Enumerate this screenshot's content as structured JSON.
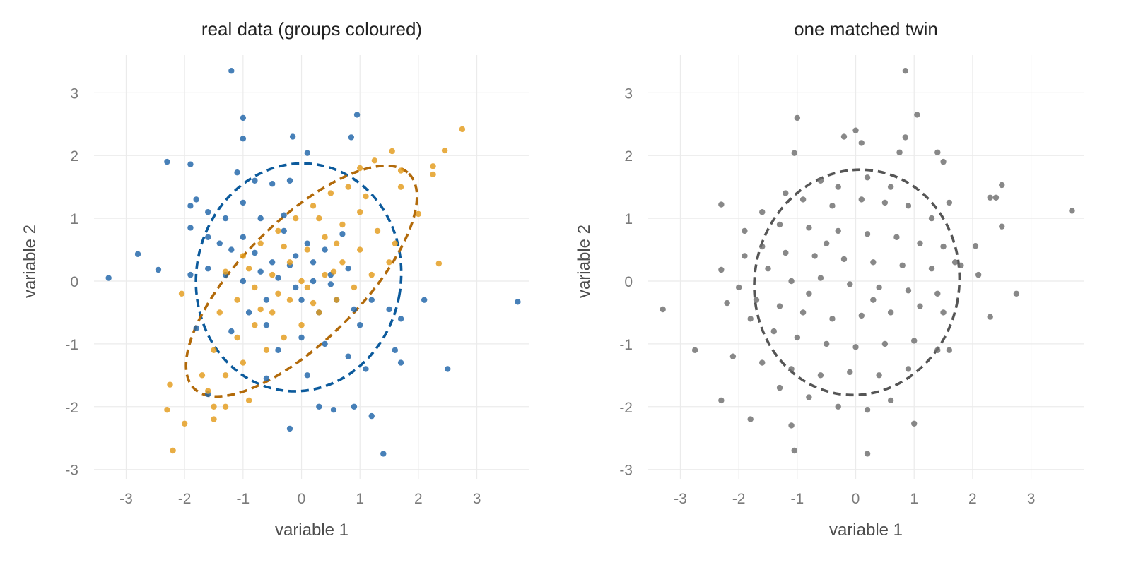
{
  "chart_data": [
    {
      "type": "scatter",
      "title": "real data (groups coloured)",
      "xlabel": "variable 1",
      "ylabel": "variable 2",
      "xlim": [
        -3.55,
        3.9
      ],
      "ylim": [
        -3.15,
        3.6
      ],
      "xticks": [
        -3,
        -2,
        -1,
        0,
        1,
        2,
        3
      ],
      "yticks": [
        -3,
        -2,
        -1,
        0,
        1,
        2,
        3
      ],
      "grid": true,
      "legend": "none",
      "series": [
        {
          "color": "#1f64a8",
          "points": [
            [
              -1.2,
              3.35
            ],
            [
              -1.0,
              2.6
            ],
            [
              -1.0,
              2.27
            ],
            [
              0.95,
              2.65
            ],
            [
              -0.15,
              2.3
            ],
            [
              0.85,
              2.29
            ],
            [
              0.1,
              2.04
            ],
            [
              -2.3,
              1.9
            ],
            [
              -1.9,
              1.86
            ],
            [
              -1.1,
              1.73
            ],
            [
              -0.8,
              1.6
            ],
            [
              -0.5,
              1.55
            ],
            [
              -0.2,
              1.6
            ],
            [
              -1.8,
              1.3
            ],
            [
              -1.9,
              1.2
            ],
            [
              -1.6,
              1.1
            ],
            [
              -1.3,
              1.0
            ],
            [
              -1.0,
              1.25
            ],
            [
              -0.7,
              1.0
            ],
            [
              -0.3,
              1.05
            ],
            [
              -1.9,
              0.85
            ],
            [
              -1.6,
              0.7
            ],
            [
              -1.4,
              0.6
            ],
            [
              -1.2,
              0.5
            ],
            [
              -1.0,
              0.7
            ],
            [
              -0.8,
              0.45
            ],
            [
              -0.5,
              0.3
            ],
            [
              -0.2,
              0.25
            ],
            [
              0.1,
              0.6
            ],
            [
              0.4,
              0.5
            ],
            [
              -1.9,
              0.1
            ],
            [
              -1.6,
              0.2
            ],
            [
              -1.3,
              0.1
            ],
            [
              -1.0,
              0.0
            ],
            [
              -0.7,
              0.15
            ],
            [
              -0.4,
              0.05
            ],
            [
              -0.1,
              -0.1
            ],
            [
              0.2,
              0.0
            ],
            [
              0.5,
              0.1
            ],
            [
              0.8,
              0.2
            ],
            [
              -2.8,
              0.43
            ],
            [
              -2.45,
              0.18
            ],
            [
              -3.3,
              0.05
            ],
            [
              0.0,
              -0.3
            ],
            [
              0.3,
              -0.5
            ],
            [
              0.6,
              -0.3
            ],
            [
              0.9,
              -0.45
            ],
            [
              1.2,
              -0.3
            ],
            [
              1.5,
              -0.45
            ],
            [
              1.7,
              -0.6
            ],
            [
              -1.8,
              -0.75
            ],
            [
              -1.2,
              -0.8
            ],
            [
              -0.6,
              -0.7
            ],
            [
              0.0,
              -0.9
            ],
            [
              0.4,
              -1.0
            ],
            [
              0.8,
              -1.2
            ],
            [
              1.1,
              -1.4
            ],
            [
              1.6,
              -1.1
            ],
            [
              1.7,
              -1.3
            ],
            [
              2.1,
              -0.3
            ],
            [
              2.5,
              -1.4
            ],
            [
              -1.6,
              -1.8
            ],
            [
              -0.6,
              -1.55
            ],
            [
              0.1,
              -1.5
            ],
            [
              0.3,
              -2.0
            ],
            [
              0.55,
              -2.05
            ],
            [
              0.9,
              -2.0
            ],
            [
              1.2,
              -2.15
            ],
            [
              1.4,
              -2.75
            ],
            [
              -0.2,
              -2.35
            ],
            [
              3.7,
              -0.33
            ],
            [
              -0.3,
              0.8
            ],
            [
              -0.1,
              0.4
            ],
            [
              0.2,
              0.3
            ],
            [
              0.5,
              -0.05
            ],
            [
              -0.6,
              -0.3
            ],
            [
              -0.9,
              -0.5
            ],
            [
              0.7,
              0.75
            ],
            [
              1.0,
              -0.7
            ],
            [
              -0.4,
              -1.1
            ]
          ]
        },
        {
          "color": "#e39b1b",
          "points": [
            [
              2.75,
              2.42
            ],
            [
              2.45,
              2.08
            ],
            [
              2.25,
              1.83
            ],
            [
              2.25,
              1.7
            ],
            [
              1.55,
              2.07
            ],
            [
              1.25,
              1.92
            ],
            [
              1.0,
              1.8
            ],
            [
              1.7,
              1.76
            ],
            [
              1.7,
              1.5
            ],
            [
              2.0,
              1.07
            ],
            [
              0.8,
              1.5
            ],
            [
              0.5,
              1.4
            ],
            [
              0.2,
              1.2
            ],
            [
              -0.1,
              1.0
            ],
            [
              -0.4,
              0.8
            ],
            [
              -0.7,
              0.6
            ],
            [
              -1.0,
              0.4
            ],
            [
              -1.3,
              0.15
            ],
            [
              1.0,
              1.1
            ],
            [
              0.7,
              0.9
            ],
            [
              0.4,
              0.7
            ],
            [
              0.1,
              0.5
            ],
            [
              -0.2,
              0.3
            ],
            [
              -0.5,
              0.1
            ],
            [
              -0.8,
              -0.1
            ],
            [
              -1.1,
              -0.3
            ],
            [
              -1.4,
              -0.5
            ],
            [
              1.3,
              0.8
            ],
            [
              1.0,
              0.5
            ],
            [
              0.7,
              0.3
            ],
            [
              0.4,
              0.1
            ],
            [
              0.1,
              -0.1
            ],
            [
              -0.2,
              -0.3
            ],
            [
              -0.5,
              -0.5
            ],
            [
              -0.8,
              -0.7
            ],
            [
              -1.1,
              -0.9
            ],
            [
              -1.5,
              -1.1
            ],
            [
              1.5,
              0.3
            ],
            [
              1.2,
              0.1
            ],
            [
              0.9,
              -0.1
            ],
            [
              0.6,
              -0.3
            ],
            [
              0.3,
              -0.5
            ],
            [
              0.0,
              -0.7
            ],
            [
              -0.3,
              -0.9
            ],
            [
              -0.6,
              -1.1
            ],
            [
              -1.0,
              -1.3
            ],
            [
              -1.3,
              -1.5
            ],
            [
              -1.6,
              -1.75
            ],
            [
              -1.5,
              -2.0
            ],
            [
              -1.5,
              -2.2
            ],
            [
              -1.3,
              -2.0
            ],
            [
              -0.9,
              -1.9
            ],
            [
              -1.7,
              -1.5
            ],
            [
              -2.25,
              -1.65
            ],
            [
              -2.3,
              -2.05
            ],
            [
              -2.0,
              -2.27
            ],
            [
              -2.2,
              -2.7
            ],
            [
              -2.05,
              -0.2
            ],
            [
              2.35,
              0.28
            ],
            [
              1.6,
              0.6
            ],
            [
              0.3,
              1.0
            ],
            [
              -0.3,
              0.55
            ],
            [
              0.6,
              0.6
            ],
            [
              -0.9,
              0.2
            ],
            [
              1.1,
              1.35
            ],
            [
              0.0,
              0.0
            ],
            [
              -0.4,
              -0.2
            ],
            [
              0.2,
              -0.35
            ],
            [
              -0.7,
              -0.45
            ],
            [
              0.55,
              0.15
            ]
          ]
        }
      ],
      "ellipses": [
        {
          "color": "#0b5a9c",
          "center": [
            -0.05,
            0.06
          ],
          "rx": 1.75,
          "ry": 1.82,
          "angle_deg": -10
        },
        {
          "color": "#b26a0a",
          "center": [
            0.0,
            0.0
          ],
          "rx": 2.6,
          "ry": 0.95,
          "angle_deg": 45
        }
      ]
    },
    {
      "type": "scatter",
      "title": "one matched twin",
      "xlabel": "variable 1",
      "ylabel": "variable 2",
      "xlim": [
        -3.55,
        3.9
      ],
      "ylim": [
        -3.15,
        3.6
      ],
      "xticks": [
        -3,
        -2,
        -1,
        0,
        1,
        2,
        3
      ],
      "yticks": [
        -3,
        -2,
        -1,
        0,
        1,
        2,
        3
      ],
      "grid": true,
      "legend": "none",
      "series": [
        {
          "color": "#6e6e6e",
          "points": [
            [
              0.85,
              3.35
            ],
            [
              1.05,
              2.65
            ],
            [
              -1.0,
              2.6
            ],
            [
              0.85,
              2.29
            ],
            [
              -0.2,
              2.3
            ],
            [
              0.0,
              2.4
            ],
            [
              0.1,
              2.2
            ],
            [
              0.75,
              2.05
            ],
            [
              1.4,
              2.05
            ],
            [
              -1.05,
              2.04
            ],
            [
              -0.6,
              1.6
            ],
            [
              0.2,
              1.65
            ],
            [
              1.5,
              1.9
            ],
            [
              -0.3,
              1.5
            ],
            [
              0.6,
              1.5
            ],
            [
              -1.2,
              1.4
            ],
            [
              -0.9,
              1.3
            ],
            [
              -0.4,
              1.2
            ],
            [
              0.1,
              1.3
            ],
            [
              0.5,
              1.25
            ],
            [
              0.9,
              1.2
            ],
            [
              1.3,
              1.0
            ],
            [
              1.6,
              1.25
            ],
            [
              -1.6,
              1.1
            ],
            [
              -1.3,
              0.9
            ],
            [
              -0.8,
              0.85
            ],
            [
              -0.3,
              0.8
            ],
            [
              0.2,
              0.75
            ],
            [
              0.7,
              0.7
            ],
            [
              1.1,
              0.6
            ],
            [
              1.5,
              0.55
            ],
            [
              -1.9,
              0.8
            ],
            [
              -1.6,
              0.55
            ],
            [
              -1.2,
              0.45
            ],
            [
              -0.7,
              0.4
            ],
            [
              -0.2,
              0.35
            ],
            [
              0.3,
              0.3
            ],
            [
              0.8,
              0.25
            ],
            [
              1.3,
              0.2
            ],
            [
              1.7,
              0.3
            ],
            [
              -1.9,
              0.4
            ],
            [
              -1.5,
              0.2
            ],
            [
              -1.1,
              0.0
            ],
            [
              -0.6,
              0.05
            ],
            [
              -0.1,
              -0.05
            ],
            [
              0.4,
              -0.1
            ],
            [
              0.9,
              -0.15
            ],
            [
              1.4,
              -0.2
            ],
            [
              1.8,
              0.25
            ],
            [
              2.05,
              0.56
            ],
            [
              2.1,
              0.1
            ],
            [
              -2.3,
              0.18
            ],
            [
              -2.0,
              -0.1
            ],
            [
              -1.7,
              -0.3
            ],
            [
              -1.3,
              -0.4
            ],
            [
              -0.9,
              -0.5
            ],
            [
              -0.4,
              -0.6
            ],
            [
              0.1,
              -0.55
            ],
            [
              0.6,
              -0.5
            ],
            [
              1.1,
              -0.4
            ],
            [
              1.5,
              -0.5
            ],
            [
              -2.3,
              1.22
            ],
            [
              -3.3,
              -0.45
            ],
            [
              -2.2,
              -0.35
            ],
            [
              -1.8,
              -0.6
            ],
            [
              -1.4,
              -0.8
            ],
            [
              -1.0,
              -0.9
            ],
            [
              -0.5,
              -1.0
            ],
            [
              0.0,
              -1.05
            ],
            [
              0.5,
              -1.0
            ],
            [
              1.0,
              -0.95
            ],
            [
              1.4,
              -1.1
            ],
            [
              1.6,
              -1.1
            ],
            [
              -2.75,
              -1.1
            ],
            [
              -2.1,
              -1.2
            ],
            [
              -1.6,
              -1.3
            ],
            [
              -1.1,
              -1.4
            ],
            [
              -0.6,
              -1.5
            ],
            [
              -0.1,
              -1.45
            ],
            [
              0.4,
              -1.5
            ],
            [
              0.9,
              -1.4
            ],
            [
              -1.3,
              -1.7
            ],
            [
              -0.8,
              -1.85
            ],
            [
              -0.3,
              -2.0
            ],
            [
              0.2,
              -2.05
            ],
            [
              0.6,
              -1.9
            ],
            [
              -2.3,
              -1.9
            ],
            [
              -1.8,
              -2.2
            ],
            [
              -1.1,
              -2.3
            ],
            [
              -1.05,
              -2.7
            ],
            [
              0.2,
              -2.75
            ],
            [
              1.0,
              -2.27
            ],
            [
              2.3,
              1.33
            ],
            [
              2.5,
              1.53
            ],
            [
              2.5,
              0.87
            ],
            [
              2.75,
              -0.2
            ],
            [
              2.3,
              -0.57
            ],
            [
              3.7,
              1.12
            ],
            [
              2.4,
              1.33
            ],
            [
              -0.5,
              0.6
            ],
            [
              0.3,
              -0.3
            ],
            [
              -0.8,
              -0.2
            ]
          ]
        }
      ],
      "ellipses": [
        {
          "color": "#555555",
          "center": [
            0.02,
            -0.02
          ],
          "rx": 1.75,
          "ry": 1.8,
          "angle_deg": -10
        }
      ]
    }
  ]
}
